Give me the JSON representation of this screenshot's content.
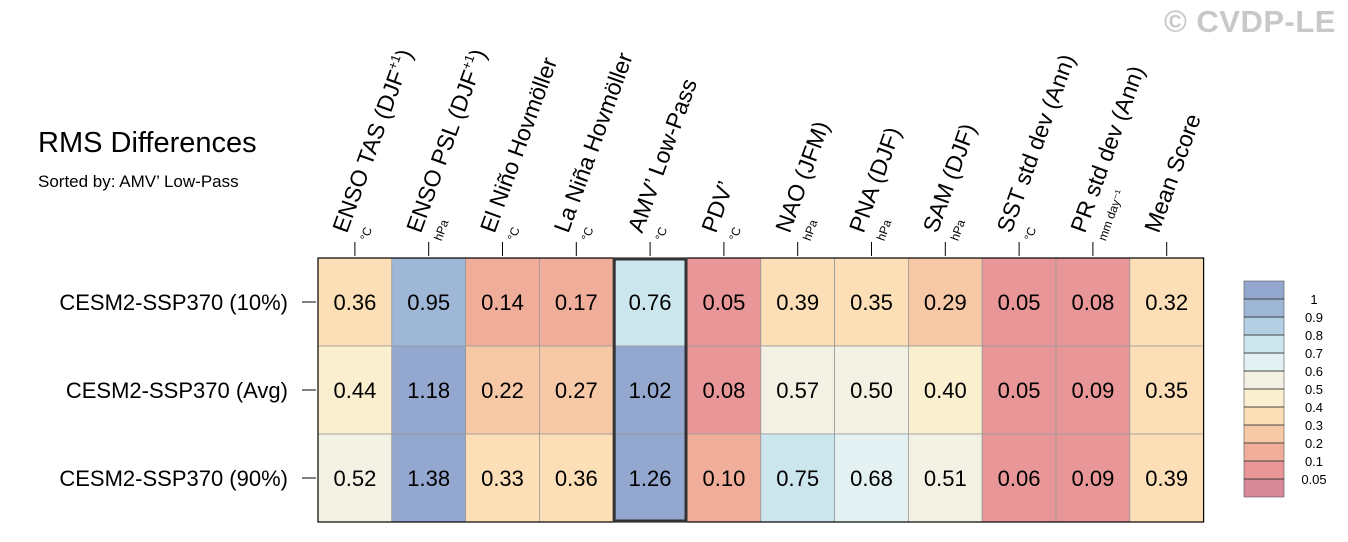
{
  "watermark": "© CVDP-LE",
  "title": "RMS Differences",
  "subtitle": "Sorted by: AMV’ Low-Pass",
  "colors": {
    "grid": "#999999",
    "highlight_border": "#333333",
    "levels": [
      "#d68896",
      "#e89698",
      "#f0ad99",
      "#f6c8a6",
      "#fcdfb6",
      "#faf0cf",
      "#f3f1e4",
      "#e3f1f2",
      "#cce6ee",
      "#b2cfe4",
      "#9fb7d7",
      "#94a7cf"
    ]
  },
  "colorbar": {
    "labels": [
      "0.05",
      "0.1",
      "0.2",
      "0.3",
      "0.4",
      "0.5",
      "0.6",
      "0.7",
      "0.8",
      "0.9",
      "1"
    ]
  },
  "chart_data": {
    "type": "heatmap",
    "title": "RMS Differences",
    "subtitle": "Sorted by: AMV’ Low-Pass",
    "highlighted_column": 4,
    "columns": [
      {
        "label": "ENSO TAS (DJF",
        "sup": "+1",
        "close": ")",
        "unit": "°C"
      },
      {
        "label": "ENSO PSL (DJF",
        "sup": "+1",
        "close": ")",
        "unit": "hPa"
      },
      {
        "label": "El Niño Hovmöller",
        "sup": "",
        "close": "",
        "unit": "°C"
      },
      {
        "label": "La Niña Hovmöller",
        "sup": "",
        "close": "",
        "unit": "°C"
      },
      {
        "label": "AMV’ Low-Pass",
        "sup": "",
        "close": "",
        "unit": "°C"
      },
      {
        "label": "PDV’",
        "sup": "",
        "close": "",
        "unit": "°C"
      },
      {
        "label": "NAO (JFM)",
        "sup": "",
        "close": "",
        "unit": "hPa"
      },
      {
        "label": "PNA (DJF)",
        "sup": "",
        "close": "",
        "unit": "hPa"
      },
      {
        "label": "SAM (DJF)",
        "sup": "",
        "close": "",
        "unit": "hPa"
      },
      {
        "label": "SST std dev (Ann)",
        "sup": "",
        "close": "",
        "unit": "°C"
      },
      {
        "label": "PR std dev (Ann)",
        "sup": "",
        "close": "",
        "unit": "mm day⁻¹"
      },
      {
        "label": "Mean Score",
        "sup": "",
        "close": "",
        "unit": ""
      }
    ],
    "rows": [
      "CESM2-SSP370 (10%)",
      "CESM2-SSP370 (Avg)",
      "CESM2-SSP370 (90%)"
    ],
    "values": [
      [
        "0.36",
        "0.95",
        "0.14",
        "0.17",
        "0.76",
        "0.05",
        "0.39",
        "0.35",
        "0.29",
        "0.05",
        "0.08",
        "0.32"
      ],
      [
        "0.44",
        "1.18",
        "0.22",
        "0.27",
        "1.02",
        "0.08",
        "0.57",
        "0.50",
        "0.40",
        "0.05",
        "0.09",
        "0.35"
      ],
      [
        "0.52",
        "1.38",
        "0.33",
        "0.36",
        "1.26",
        "0.10",
        "0.75",
        "0.68",
        "0.51",
        "0.06",
        "0.09",
        "0.39"
      ]
    ],
    "levels": [
      0.05,
      0.1,
      0.2,
      0.3,
      0.4,
      0.5,
      0.6,
      0.7,
      0.8,
      0.9,
      1
    ]
  }
}
